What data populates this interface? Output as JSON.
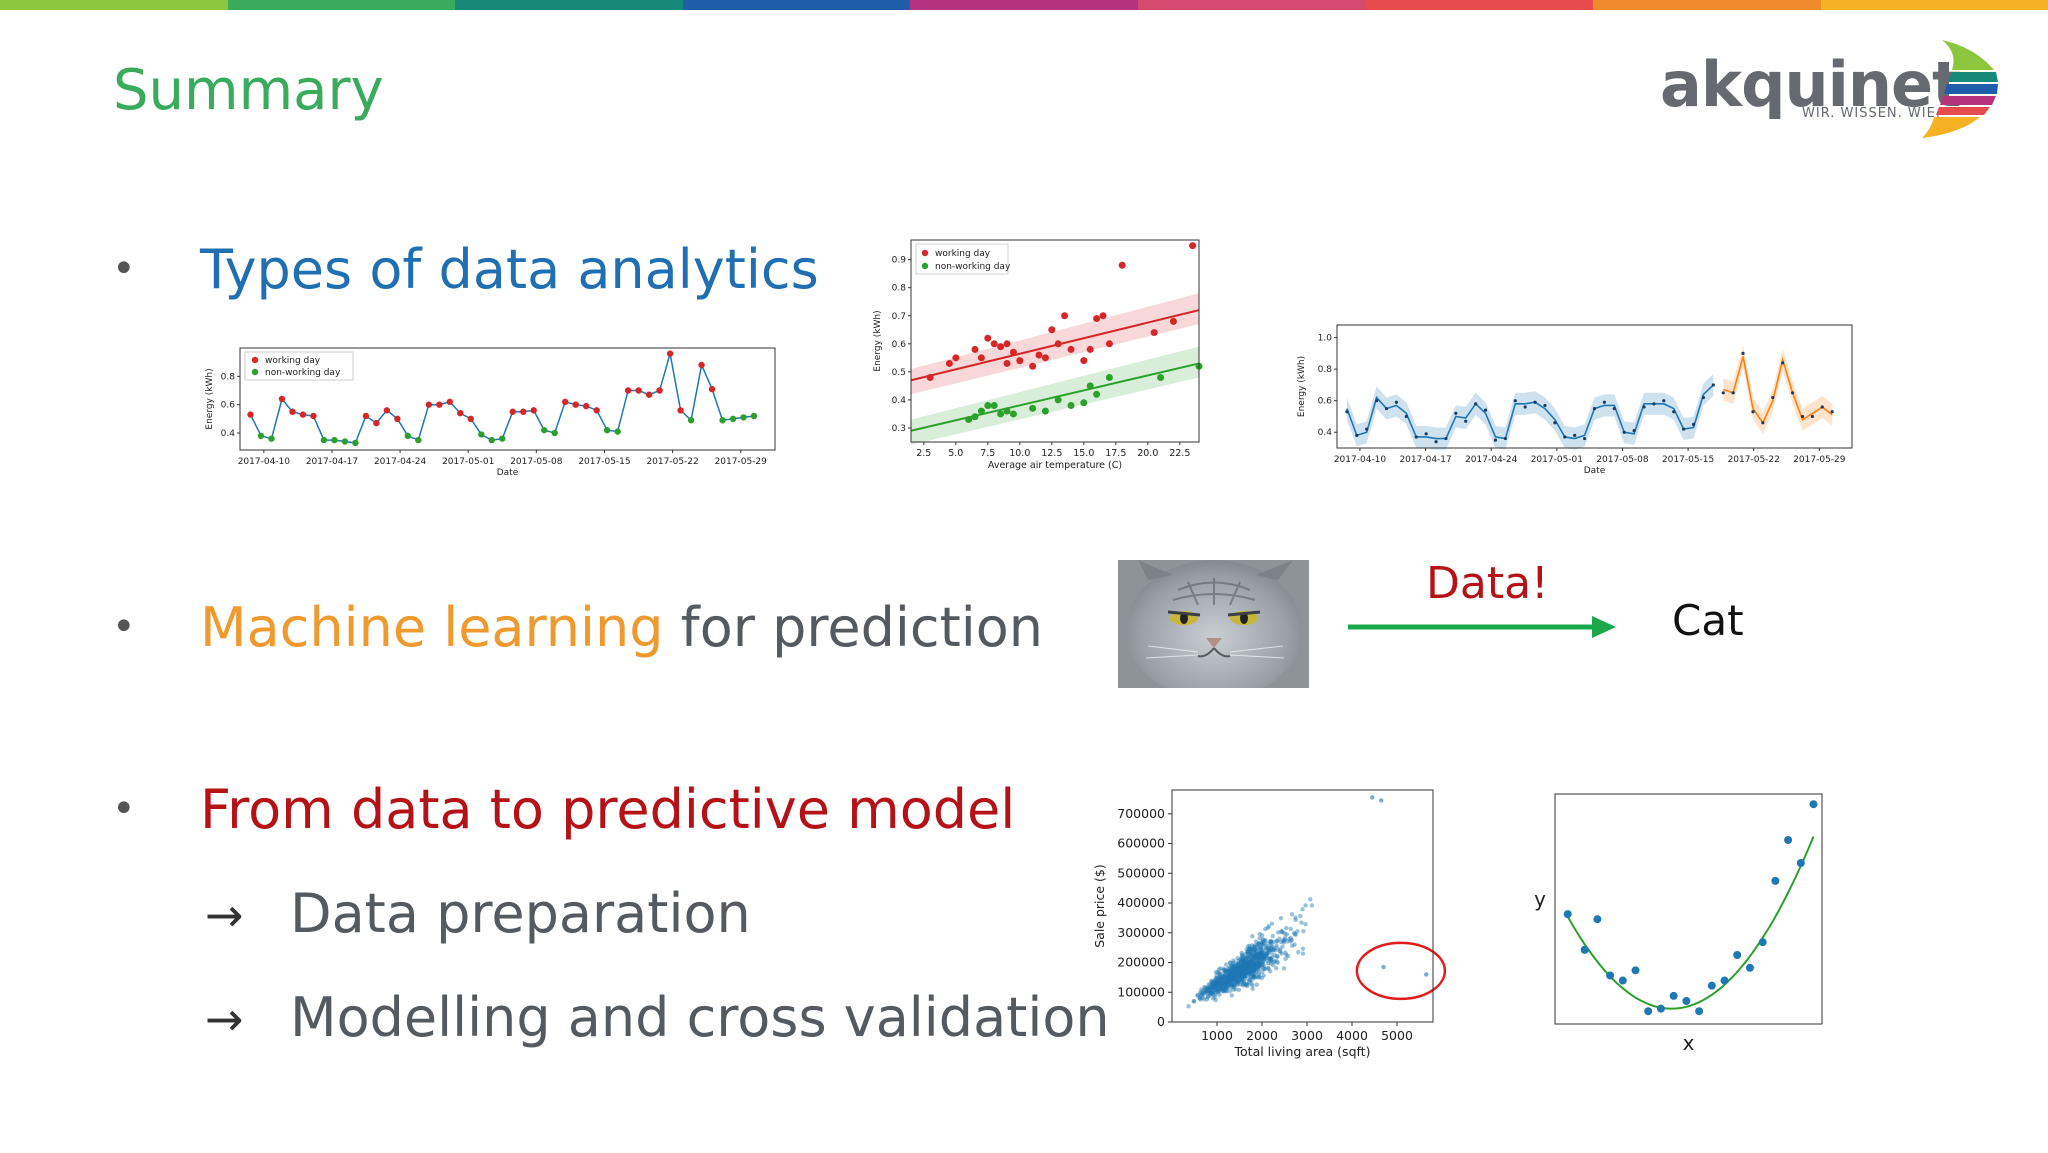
{
  "slide": {
    "title": "Summary",
    "top_bar_colors": [
      "#8cc63f",
      "#3aaa5c",
      "#17897a",
      "#1e5ea8",
      "#b5327f",
      "#d54a6f",
      "#e84b4b",
      "#f08a2b",
      "#f5b324"
    ]
  },
  "logo": {
    "name": "akquinet",
    "tagline": "WIR. WISSEN. WIE."
  },
  "bullets": [
    {
      "highlight": "Types of data analytics",
      "rest": ""
    },
    {
      "highlight": "Machine learning",
      "rest": " for prediction"
    },
    {
      "highlight": "From data to predictive model",
      "rest": ""
    }
  ],
  "sub_bullets": [
    {
      "arrow": "→",
      "text": "Data preparation"
    },
    {
      "arrow": "→",
      "text": "Modelling and cross validation"
    }
  ],
  "ml_diagram": {
    "arrow_label": "Data!",
    "output_label": "Cat",
    "arrow_color": "#1aa84b"
  },
  "chart_data": [
    {
      "type": "line",
      "ylabel": "Energy (kWh)",
      "xlabel": "Date",
      "legend": [
        "working day",
        "non-working day"
      ],
      "legend_position": "top-left",
      "xticks": [
        "2017-04-10",
        "2017-04-17",
        "2017-04-24",
        "2017-05-01",
        "2017-05-08",
        "2017-05-15",
        "2017-05-22",
        "2017-05-29"
      ],
      "yticks": [
        0.4,
        0.6,
        0.8
      ],
      "ylim": [
        0.28,
        1.0
      ],
      "values": [
        0.53,
        0.38,
        0.36,
        0.64,
        0.55,
        0.53,
        0.52,
        0.35,
        0.35,
        0.34,
        0.33,
        0.52,
        0.47,
        0.56,
        0.5,
        0.38,
        0.35,
        0.6,
        0.6,
        0.62,
        0.54,
        0.5,
        0.39,
        0.35,
        0.36,
        0.55,
        0.55,
        0.56,
        0.42,
        0.4,
        0.62,
        0.6,
        0.59,
        0.56,
        0.42,
        0.41,
        0.7,
        0.7,
        0.67,
        0.7,
        0.96,
        0.56,
        0.49,
        0.88,
        0.71,
        0.49,
        0.5,
        0.51,
        0.52
      ],
      "working": [
        1,
        0,
        0,
        1,
        1,
        1,
        1,
        0,
        0,
        0,
        0,
        1,
        1,
        1,
        1,
        0,
        0,
        1,
        1,
        1,
        1,
        1,
        0,
        0,
        0,
        1,
        1,
        1,
        0,
        0,
        1,
        1,
        1,
        1,
        0,
        0,
        1,
        1,
        1,
        1,
        1,
        1,
        0,
        1,
        1,
        0,
        0,
        0,
        0
      ],
      "colors": {
        "line": "#1f77b4",
        "working": "#d62728",
        "non_working": "#2ca02c"
      }
    },
    {
      "type": "scatter",
      "ylabel": "Energy (kWh)",
      "xlabel": "Average air temperature (C)",
      "legend": [
        "working day",
        "non-working day"
      ],
      "legend_position": "top-left",
      "xticks": [
        2.5,
        5.0,
        7.5,
        10.0,
        12.5,
        15.0,
        17.5,
        20.0,
        22.5
      ],
      "xtick_labels": [
        "2.5",
        "5.0",
        "7.5",
        "10.0",
        "12.5",
        "15.0",
        "17.5",
        "20.0",
        "22.5"
      ],
      "yticks": [
        0.3,
        0.4,
        0.5,
        0.6,
        0.7,
        0.8,
        0.9
      ],
      "yticks_labels": [
        "0.3",
        "0.4",
        "0.5",
        "0.6",
        "0.7",
        "0.8",
        "0.9"
      ],
      "xlim": [
        1.5,
        24
      ],
      "ylim": [
        0.25,
        0.97
      ],
      "working_points": [
        [
          3,
          0.48
        ],
        [
          4.5,
          0.53
        ],
        [
          5,
          0.55
        ],
        [
          6.5,
          0.58
        ],
        [
          7,
          0.55
        ],
        [
          7.5,
          0.62
        ],
        [
          8,
          0.6
        ],
        [
          8.5,
          0.59
        ],
        [
          9,
          0.6
        ],
        [
          9.5,
          0.57
        ],
        [
          9,
          0.53
        ],
        [
          10,
          0.54
        ],
        [
          11,
          0.52
        ],
        [
          11.5,
          0.56
        ],
        [
          12,
          0.55
        ],
        [
          12.5,
          0.65
        ],
        [
          13,
          0.6
        ],
        [
          13.5,
          0.7
        ],
        [
          14,
          0.58
        ],
        [
          15,
          0.54
        ],
        [
          15.5,
          0.58
        ],
        [
          16,
          0.69
        ],
        [
          16.5,
          0.7
        ],
        [
          17,
          0.6
        ],
        [
          18,
          0.88
        ],
        [
          20.5,
          0.64
        ],
        [
          22,
          0.68
        ],
        [
          23.5,
          0.95
        ]
      ],
      "non_working_points": [
        [
          6,
          0.33
        ],
        [
          6.5,
          0.34
        ],
        [
          7,
          0.36
        ],
        [
          7.5,
          0.38
        ],
        [
          8,
          0.38
        ],
        [
          8.5,
          0.35
        ],
        [
          9,
          0.36
        ],
        [
          9.5,
          0.35
        ],
        [
          11,
          0.37
        ],
        [
          12,
          0.36
        ],
        [
          13,
          0.4
        ],
        [
          14,
          0.38
        ],
        [
          15,
          0.39
        ],
        [
          15.5,
          0.45
        ],
        [
          16,
          0.42
        ],
        [
          17,
          0.48
        ],
        [
          21,
          0.48
        ],
        [
          24,
          0.52
        ]
      ],
      "working_fit": [
        [
          1.5,
          0.47
        ],
        [
          24,
          0.72
        ]
      ],
      "non_working_fit": [
        [
          1.5,
          0.29
        ],
        [
          24,
          0.53
        ]
      ],
      "colors": {
        "working": "#d62728",
        "non_working": "#2ca02c"
      }
    },
    {
      "type": "line",
      "ylabel": "Energy (kWh)",
      "xlabel": "Date",
      "xticks": [
        "2017-04-10",
        "2017-04-17",
        "2017-04-24",
        "2017-05-01",
        "2017-05-08",
        "2017-05-15",
        "2017-05-22",
        "2017-05-29"
      ],
      "yticks": [
        0.4,
        0.6,
        0.8,
        1.0
      ],
      "ylim": [
        0.3,
        1.08
      ],
      "history": [
        0.55,
        0.38,
        0.4,
        0.62,
        0.55,
        0.57,
        0.52,
        0.37,
        0.37,
        0.36,
        0.36,
        0.5,
        0.49,
        0.58,
        0.52,
        0.37,
        0.36,
        0.58,
        0.58,
        0.59,
        0.55,
        0.48,
        0.37,
        0.36,
        0.38,
        0.55,
        0.57,
        0.57,
        0.4,
        0.39,
        0.58,
        0.58,
        0.58,
        0.55,
        0.42,
        0.43,
        0.64,
        0.7
      ],
      "forecast": [
        0.67,
        0.65,
        0.88,
        0.55,
        0.46,
        0.6,
        0.86,
        0.65,
        0.48,
        0.52,
        0.56,
        0.51
      ],
      "colors": {
        "history": "#1f77b4",
        "forecast": "#ff7f0e"
      }
    },
    {
      "type": "scatter",
      "ylabel": "Sale price ($)",
      "xlabel": "Total living area (sqft)",
      "xticks": [
        1000,
        2000,
        3000,
        4000,
        5000
      ],
      "yticks": [
        0,
        100000,
        200000,
        300000,
        400000,
        500000,
        600000,
        700000
      ],
      "xlim": [
        0,
        5800
      ],
      "ylim": [
        0,
        780000
      ],
      "outliers": [
        [
          4700,
          184750
        ],
        [
          5650,
          160000
        ]
      ],
      "top_points": [
        [
          4450,
          755000
        ],
        [
          4650,
          745000
        ]
      ],
      "color": "#1f77b4",
      "outlier_circle_color": "#e31a1c"
    },
    {
      "type": "scatter",
      "xlabel": "x",
      "ylabel": "y",
      "points": [
        [
          0.3,
          1.55
        ],
        [
          0.7,
          0.85
        ],
        [
          1.0,
          1.45
        ],
        [
          1.3,
          0.35
        ],
        [
          1.6,
          0.25
        ],
        [
          1.9,
          0.45
        ],
        [
          2.2,
          -0.35
        ],
        [
          2.5,
          -0.3
        ],
        [
          2.8,
          -0.05
        ],
        [
          3.1,
          -0.15
        ],
        [
          3.4,
          -0.35
        ],
        [
          3.7,
          0.15
        ],
        [
          4.0,
          0.25
        ],
        [
          4.3,
          0.75
        ],
        [
          4.6,
          0.5
        ],
        [
          4.9,
          1.0
        ],
        [
          5.2,
          2.2
        ],
        [
          5.5,
          3.0
        ],
        [
          5.8,
          2.55
        ],
        [
          6.1,
          3.7
        ]
      ],
      "fit": "quadratic",
      "xlim": [
        0,
        6.3
      ],
      "ylim": [
        -0.6,
        3.9
      ],
      "colors": {
        "points": "#1f77b4",
        "fit": "#2ca02c"
      }
    }
  ]
}
